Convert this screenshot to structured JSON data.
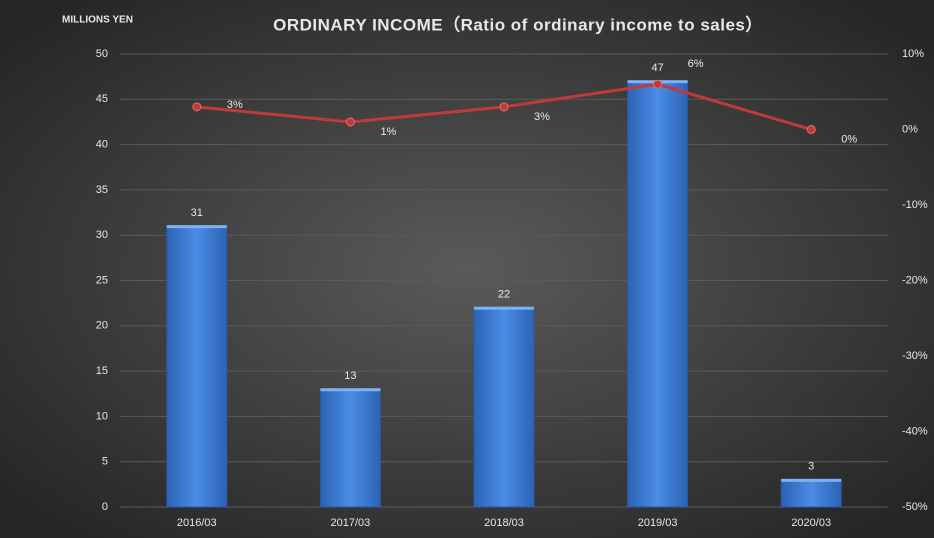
{
  "chart_data": {
    "type": "bar",
    "title": "ORDINARY INCOME（Ratio of ordinary income to sales）",
    "y_label": "MILLIONS YEN",
    "categories": [
      "2016/03",
      "2017/03",
      "2018/03",
      "2019/03",
      "2020/03"
    ],
    "series": [
      {
        "color": "#3b7fd9",
        "values": [
          31,
          13,
          22,
          47,
          3
        ]
      },
      {
        "type": "line",
        "axis": "y2",
        "color": "#c0393b",
        "values": [
          3,
          1,
          3,
          6,
          0
        ],
        "value_labels": [
          "3%",
          "1%",
          "3%",
          "6%",
          "0%"
        ]
      }
    ],
    "ylim": [
      0,
      50
    ],
    "yticks": [
      0,
      5,
      10,
      15,
      20,
      25,
      30,
      35,
      40,
      45,
      50
    ],
    "y2lim": [
      -50,
      10
    ],
    "y2ticks": [
      {
        "value": -50,
        "label": "-50%"
      },
      {
        "value": -40,
        "label": "-40%"
      },
      {
        "value": -30,
        "label": "-30%"
      },
      {
        "value": -20,
        "label": "-20%"
      },
      {
        "value": -10,
        "label": "-10%"
      },
      {
        "value": 0,
        "label": "0%"
      },
      {
        "value": 10,
        "label": "10%"
      }
    ],
    "grid": true
  }
}
